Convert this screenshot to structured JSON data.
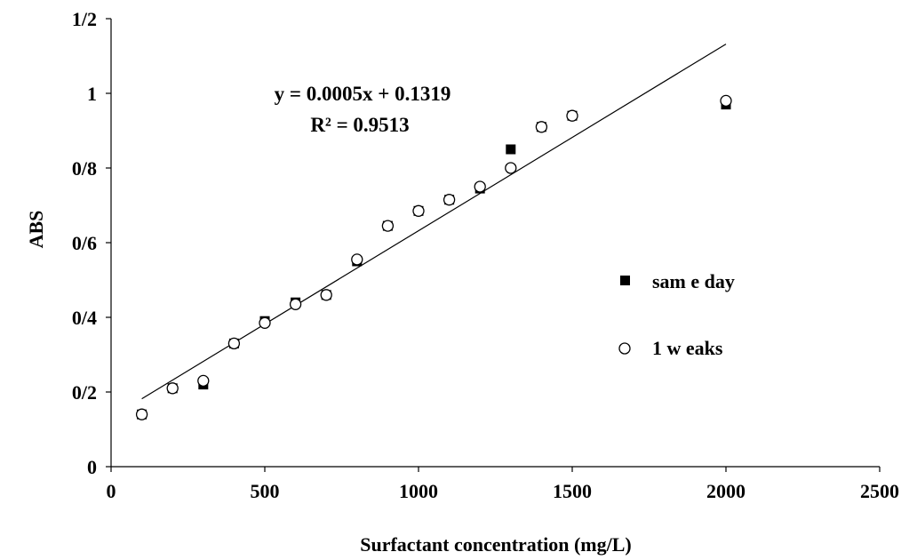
{
  "chart_data": {
    "type": "scatter",
    "xlabel": "Surfactant concentration (mg/L)",
    "ylabel": "ABS",
    "xlim": [
      0,
      2500
    ],
    "ylim": [
      0,
      1.2
    ],
    "x_ticks": [
      0,
      500,
      1000,
      1500,
      2000,
      2500
    ],
    "x_tick_labels": [
      "0",
      "500",
      "1000",
      "1500",
      "2000",
      "2500"
    ],
    "y_ticks": [
      0,
      0.2,
      0.4,
      0.6,
      0.8,
      1.0,
      1.2
    ],
    "y_tick_labels": [
      "0",
      "0/2",
      "0/4",
      "0/6",
      "0/8",
      "1",
      "1/2"
    ],
    "grid": false,
    "legend_position": "right",
    "series": [
      {
        "name": "sam e day",
        "marker": "square-filled",
        "color": "#000000",
        "x": [
          100,
          200,
          300,
          400,
          500,
          600,
          700,
          800,
          900,
          1000,
          1100,
          1200,
          1300,
          1400,
          1500,
          2000
        ],
        "y": [
          0.14,
          0.21,
          0.22,
          0.33,
          0.39,
          0.44,
          0.46,
          0.55,
          0.645,
          0.685,
          0.715,
          0.745,
          0.85,
          0.91,
          0.94,
          0.97
        ]
      },
      {
        "name": "1 w eaks",
        "marker": "circle-open",
        "color": "#000000",
        "x": [
          100,
          200,
          300,
          400,
          500,
          600,
          700,
          800,
          900,
          1000,
          1100,
          1200,
          1300,
          1400,
          1500,
          2000
        ],
        "y": [
          0.14,
          0.21,
          0.23,
          0.33,
          0.385,
          0.435,
          0.46,
          0.555,
          0.645,
          0.685,
          0.715,
          0.75,
          0.8,
          0.91,
          0.94,
          0.98
        ]
      }
    ],
    "trendline": {
      "slope": 0.0005,
      "intercept": 0.1319,
      "x_range": [
        100,
        2000
      ],
      "equation": "y = 0.0005x + 0.1319",
      "r_squared": "R² = 0.9513"
    }
  }
}
